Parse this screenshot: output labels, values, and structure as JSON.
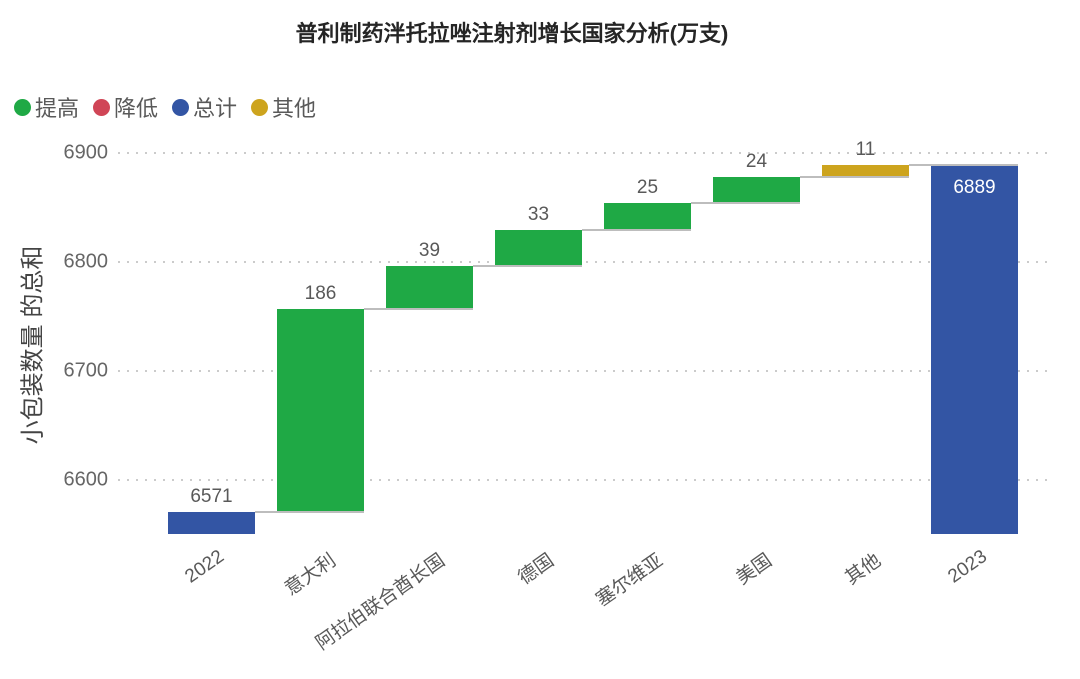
{
  "header": {
    "title": "普利制药泮托拉唑注射剂增长国家分析(万支)"
  },
  "legend": {
    "items": [
      {
        "label": "提高",
        "kind": "increase",
        "color": "#1FA945"
      },
      {
        "label": "降低",
        "kind": "decrease",
        "color": "#D04556"
      },
      {
        "label": "总计",
        "kind": "total",
        "color": "#3355A4"
      },
      {
        "label": "其他",
        "kind": "other",
        "color": "#CDA41E"
      }
    ]
  },
  "chart_data": {
    "type": "bar",
    "subtype": "waterfall",
    "title": "普利制药泮托拉唑注射剂增长国家分析(万支)",
    "xlabel": "",
    "ylabel": "小包装数量 的总和",
    "categories": [
      "2022",
      "意大利",
      "阿拉伯联合酋长国",
      "德国",
      "塞尔维亚",
      "美国",
      "其他",
      "2023"
    ],
    "values": [
      6571,
      186,
      39,
      33,
      25,
      24,
      11,
      6889
    ],
    "kinds": [
      "total",
      "increase",
      "increase",
      "increase",
      "increase",
      "increase",
      "other",
      "total"
    ],
    "points": [
      {
        "category": "2022",
        "value": 6571,
        "kind": "total",
        "label": "6571",
        "label_position": "above"
      },
      {
        "category": "意大利",
        "value": 186,
        "kind": "increase",
        "label": "186",
        "label_position": "above"
      },
      {
        "category": "阿拉伯联合酋长国",
        "value": 39,
        "kind": "increase",
        "label": "39",
        "label_position": "above"
      },
      {
        "category": "德国",
        "value": 33,
        "kind": "increase",
        "label": "33",
        "label_position": "above"
      },
      {
        "category": "塞尔维亚",
        "value": 25,
        "kind": "increase",
        "label": "25",
        "label_position": "above"
      },
      {
        "category": "美国",
        "value": 24,
        "kind": "increase",
        "label": "24",
        "label_position": "above"
      },
      {
        "category": "其他",
        "value": 11,
        "kind": "other",
        "label": "11",
        "label_position": "above"
      },
      {
        "category": "2023",
        "value": 6889,
        "kind": "total",
        "label": "6889",
        "label_position": "inside"
      }
    ],
    "cumulative": [
      6571,
      6757,
      6796,
      6829,
      6854,
      6878,
      6889,
      6889
    ],
    "yticks": [
      6600,
      6700,
      6800,
      6900
    ],
    "ymin": 6550,
    "ymax": 6920,
    "grid": "dotted-horizontal",
    "legend_position": "top-left",
    "colors": {
      "increase": "#1FA945",
      "decrease": "#D04556",
      "total": "#3355A4",
      "other": "#CDA41E",
      "grid": "#CBCBCB",
      "connector": "#BDBDBD",
      "label_text": "#595959",
      "inside_label_text": "#FFFFFF"
    }
  }
}
